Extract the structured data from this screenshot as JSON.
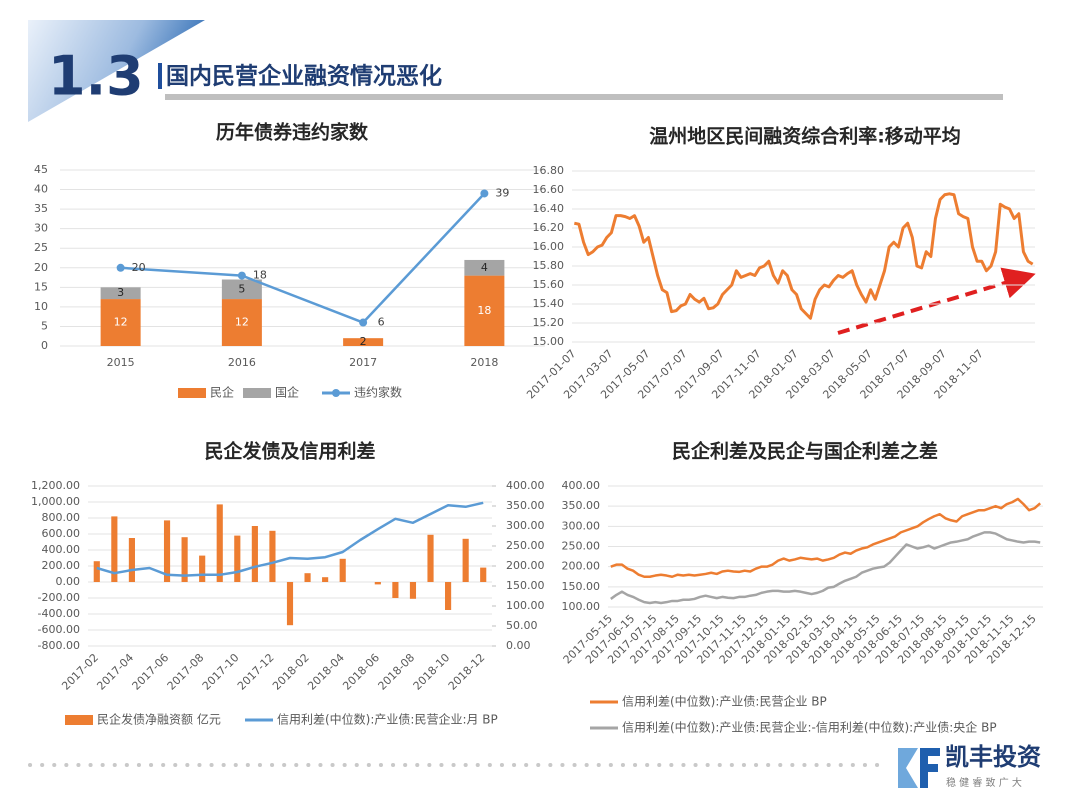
{
  "header": {
    "number": "1.3",
    "title": "国内民营企业融资情况恶化"
  },
  "logo": {
    "name": "凯丰投资",
    "slogan": "稳 健 睿 致 广 大"
  },
  "chart_data": [
    {
      "type": "bar",
      "title": "历年债券违约家数",
      "stacked": true,
      "data_labels": true,
      "grid": true,
      "legend": "bottom",
      "categories": [
        "2015",
        "2016",
        "2017",
        "2018"
      ],
      "series": [
        {
          "name": "民企",
          "type": "bar",
          "color": "#ed7d31",
          "values": [
            12,
            12,
            2,
            18
          ]
        },
        {
          "name": "国企",
          "type": "bar",
          "color": "#a5a5a5",
          "values": [
            3,
            5,
            null,
            4
          ]
        },
        {
          "name": "违约家数",
          "type": "line",
          "color": "#5b9bd5",
          "markers": true,
          "values": [
            20,
            18,
            6,
            39
          ]
        }
      ],
      "ylim": [
        0,
        45
      ],
      "yticks": [
        0,
        5,
        10,
        15,
        20,
        25,
        30,
        35,
        40,
        45
      ]
    },
    {
      "type": "line",
      "title": "温州地区民间融资综合利率:移动平均",
      "grid": true,
      "categories": [
        "2017-01-07",
        null,
        null,
        null,
        null,
        null,
        null,
        null,
        "2017-03-07",
        null,
        null,
        null,
        null,
        null,
        null,
        null,
        "2017-05-07",
        null,
        null,
        null,
        null,
        null,
        null,
        null,
        "2017-07-07",
        null,
        null,
        null,
        null,
        null,
        null,
        null,
        "2017-09-07",
        null,
        null,
        null,
        null,
        null,
        null,
        null,
        "2017-11-07",
        null,
        null,
        null,
        null,
        null,
        null,
        null,
        "2018-01-07",
        null,
        null,
        null,
        null,
        null,
        null,
        null,
        "2018-03-07",
        null,
        null,
        null,
        null,
        null,
        null,
        null,
        "2018-05-07",
        null,
        null,
        null,
        null,
        null,
        null,
        null,
        "2018-07-07",
        null,
        null,
        null,
        null,
        null,
        null,
        null,
        "2018-09-07",
        null,
        null,
        null,
        null,
        null,
        null,
        null,
        "2018-11-07",
        null,
        null,
        null,
        null,
        null,
        null,
        null,
        null,
        null,
        null,
        null
      ],
      "series": [
        {
          "type": "line",
          "color": "#ed7d31",
          "values": [
            16.25,
            16.24,
            16.05,
            15.92,
            15.95,
            16.0,
            16.02,
            16.1,
            16.15,
            16.33,
            16.33,
            16.32,
            16.3,
            16.33,
            16.22,
            16.05,
            16.1,
            15.9,
            15.7,
            15.55,
            15.52,
            15.32,
            15.33,
            15.38,
            15.4,
            15.5,
            15.45,
            15.42,
            15.46,
            15.35,
            15.36,
            15.4,
            15.5,
            15.55,
            15.6,
            15.75,
            15.68,
            15.7,
            15.72,
            15.7,
            15.78,
            15.8,
            15.85,
            15.7,
            15.62,
            15.75,
            15.7,
            15.55,
            15.5,
            15.35,
            15.3,
            15.25,
            15.45,
            15.55,
            15.6,
            15.58,
            15.65,
            15.7,
            15.68,
            15.72,
            15.75,
            15.6,
            15.5,
            15.42,
            15.55,
            15.45,
            15.6,
            15.75,
            16.0,
            16.05,
            16.0,
            16.2,
            16.25,
            16.1,
            15.8,
            15.78,
            15.95,
            15.9,
            16.3,
            16.5,
            16.55,
            16.56,
            16.55,
            16.35,
            16.32,
            16.3,
            16.0,
            15.85,
            15.85,
            15.75,
            15.8,
            15.95,
            16.45,
            16.42,
            16.4,
            16.3,
            16.35,
            15.95,
            15.85,
            15.82
          ]
        }
      ],
      "ylim": [
        15.0,
        16.8
      ],
      "yticks": [
        {
          "value": 15.0,
          "label": "15.00"
        },
        {
          "value": 15.2,
          "label": "15.20"
        },
        {
          "value": 15.4,
          "label": "15.40"
        },
        {
          "value": 15.6,
          "label": "15.60"
        },
        {
          "value": 15.8,
          "label": "15.80"
        },
        {
          "value": 16.0,
          "label": "16.00"
        },
        {
          "value": 16.2,
          "label": "16.20"
        },
        {
          "value": 16.4,
          "label": "16.40"
        },
        {
          "value": 16.6,
          "label": "16.60"
        },
        {
          "value": 16.8,
          "label": "16.80"
        }
      ]
    },
    {
      "type": "bar",
      "title": "民企发债及信用利差",
      "grid": true,
      "legend": "bottom",
      "categories": [
        "2017-02",
        null,
        "2017-04",
        null,
        "2017-06",
        null,
        "2017-08",
        null,
        "2017-10",
        null,
        "2017-12",
        null,
        "2018-02",
        null,
        "2018-04",
        null,
        "2018-06",
        null,
        "2018-08",
        null,
        "2018-10",
        null,
        "2018-12"
      ],
      "series": [
        {
          "name": "民企发债净融资额 亿元",
          "type": "bar",
          "color": "#ed7d31",
          "values": [
            260,
            820,
            550,
            0,
            770,
            560,
            330,
            970,
            580,
            700,
            640,
            -540,
            110,
            60,
            290,
            0,
            -30,
            -200,
            -210,
            590,
            -350,
            540,
            180
          ]
        },
        {
          "name": "信用利差(中位数):产业债:民营企业:月 BP",
          "type": "line",
          "axis": "y2",
          "color": "#5b9bd5",
          "values": [
            195,
            182,
            190,
            195,
            178,
            176,
            178,
            178,
            185,
            198,
            208,
            220,
            218,
            222,
            235,
            265,
            292,
            318,
            308,
            330,
            352,
            348,
            358
          ]
        }
      ],
      "ylim": [
        -800,
        1200
      ],
      "yticks": [
        {
          "value": -800,
          "label": "-800.00"
        },
        {
          "value": -600,
          "label": "-600.00"
        },
        {
          "value": -400,
          "label": "-400.00"
        },
        {
          "value": -200,
          "label": "-200.00"
        },
        {
          "value": 0,
          "label": "0.00"
        },
        {
          "value": 200,
          "label": "200.00"
        },
        {
          "value": 400,
          "label": "400.00"
        },
        {
          "value": 600,
          "label": "600.00"
        },
        {
          "value": 800,
          "label": "800.00"
        },
        {
          "value": 1000,
          "label": "1,000.00"
        },
        {
          "value": 1200,
          "label": "1,200.00"
        }
      ],
      "y2lim": [
        0,
        400
      ],
      "y2ticks": [
        {
          "value": 0,
          "label": "0.00"
        },
        {
          "value": 50,
          "label": "50.00"
        },
        {
          "value": 100,
          "label": "100.00"
        },
        {
          "value": 150,
          "label": "150.00"
        },
        {
          "value": 200,
          "label": "200.00"
        },
        {
          "value": 250,
          "label": "250.00"
        },
        {
          "value": 300,
          "label": "300.00"
        },
        {
          "value": 350,
          "label": "350.00"
        },
        {
          "value": 400,
          "label": "400.00"
        }
      ]
    },
    {
      "type": "line",
      "title": "民企利差及民企与国企利差之差",
      "grid": true,
      "legend": "bottom",
      "categories": [
        "2017-05-15",
        null,
        null,
        null,
        "2017-06-15",
        null,
        null,
        null,
        "2017-07-15",
        null,
        null,
        null,
        "2017-08-15",
        null,
        null,
        null,
        "2017-09-15",
        null,
        null,
        null,
        "2017-10-15",
        null,
        null,
        null,
        "2017-11-15",
        null,
        null,
        null,
        "2017-12-15",
        null,
        null,
        null,
        "2018-01-15",
        null,
        null,
        null,
        "2018-02-15",
        null,
        null,
        null,
        "2018-03-15",
        null,
        null,
        null,
        "2018-04-15",
        null,
        null,
        null,
        "2018-05-15",
        null,
        null,
        null,
        "2018-06-15",
        null,
        null,
        null,
        "2018-07-15",
        null,
        null,
        null,
        "2018-08-15",
        null,
        null,
        null,
        "2018-09-15",
        null,
        null,
        null,
        "2018-10-15",
        null,
        null,
        null,
        "2018-11-15",
        null,
        null,
        null,
        "2018-12-15",
        null
      ],
      "series": [
        {
          "name": "信用利差(中位数):产业债:民营企业 BP",
          "type": "line",
          "color": "#ed7d31",
          "values": [
            200,
            205,
            205,
            195,
            190,
            180,
            175,
            175,
            178,
            180,
            178,
            175,
            180,
            178,
            180,
            178,
            180,
            182,
            185,
            182,
            188,
            190,
            188,
            187,
            190,
            188,
            195,
            200,
            200,
            205,
            215,
            220,
            215,
            218,
            222,
            220,
            218,
            220,
            215,
            218,
            222,
            230,
            235,
            232,
            240,
            245,
            248,
            255,
            260,
            265,
            270,
            275,
            285,
            290,
            295,
            300,
            310,
            318,
            325,
            330,
            320,
            315,
            312,
            325,
            330,
            335,
            340,
            340,
            345,
            350,
            345,
            355,
            360,
            368,
            355,
            340,
            345,
            357
          ]
        },
        {
          "name": "信用利差(中位数):产业债:民营企业:-信用利差(中位数):产业债:央企 BP",
          "type": "line",
          "color": "#a5a5a5",
          "values": [
            120,
            130,
            138,
            130,
            125,
            118,
            112,
            110,
            112,
            110,
            112,
            115,
            115,
            118,
            118,
            120,
            125,
            128,
            125,
            122,
            125,
            123,
            122,
            125,
            125,
            128,
            130,
            135,
            138,
            140,
            140,
            138,
            138,
            140,
            138,
            135,
            132,
            135,
            140,
            148,
            150,
            158,
            165,
            170,
            175,
            185,
            190,
            195,
            198,
            200,
            210,
            225,
            240,
            255,
            250,
            245,
            248,
            252,
            245,
            250,
            255,
            260,
            262,
            265,
            268,
            275,
            280,
            285,
            285,
            282,
            275,
            268,
            265,
            262,
            260,
            262,
            262,
            260
          ]
        }
      ],
      "ylim": [
        100,
        400
      ],
      "yticks": [
        {
          "value": 100,
          "label": "100.00"
        },
        {
          "value": 150,
          "label": "150.00"
        },
        {
          "value": 200,
          "label": "200.00"
        },
        {
          "value": 250,
          "label": "250.00"
        },
        {
          "value": 300,
          "label": "300.00"
        },
        {
          "value": 350,
          "label": "350.00"
        },
        {
          "value": 400,
          "label": "400.00"
        }
      ]
    }
  ]
}
